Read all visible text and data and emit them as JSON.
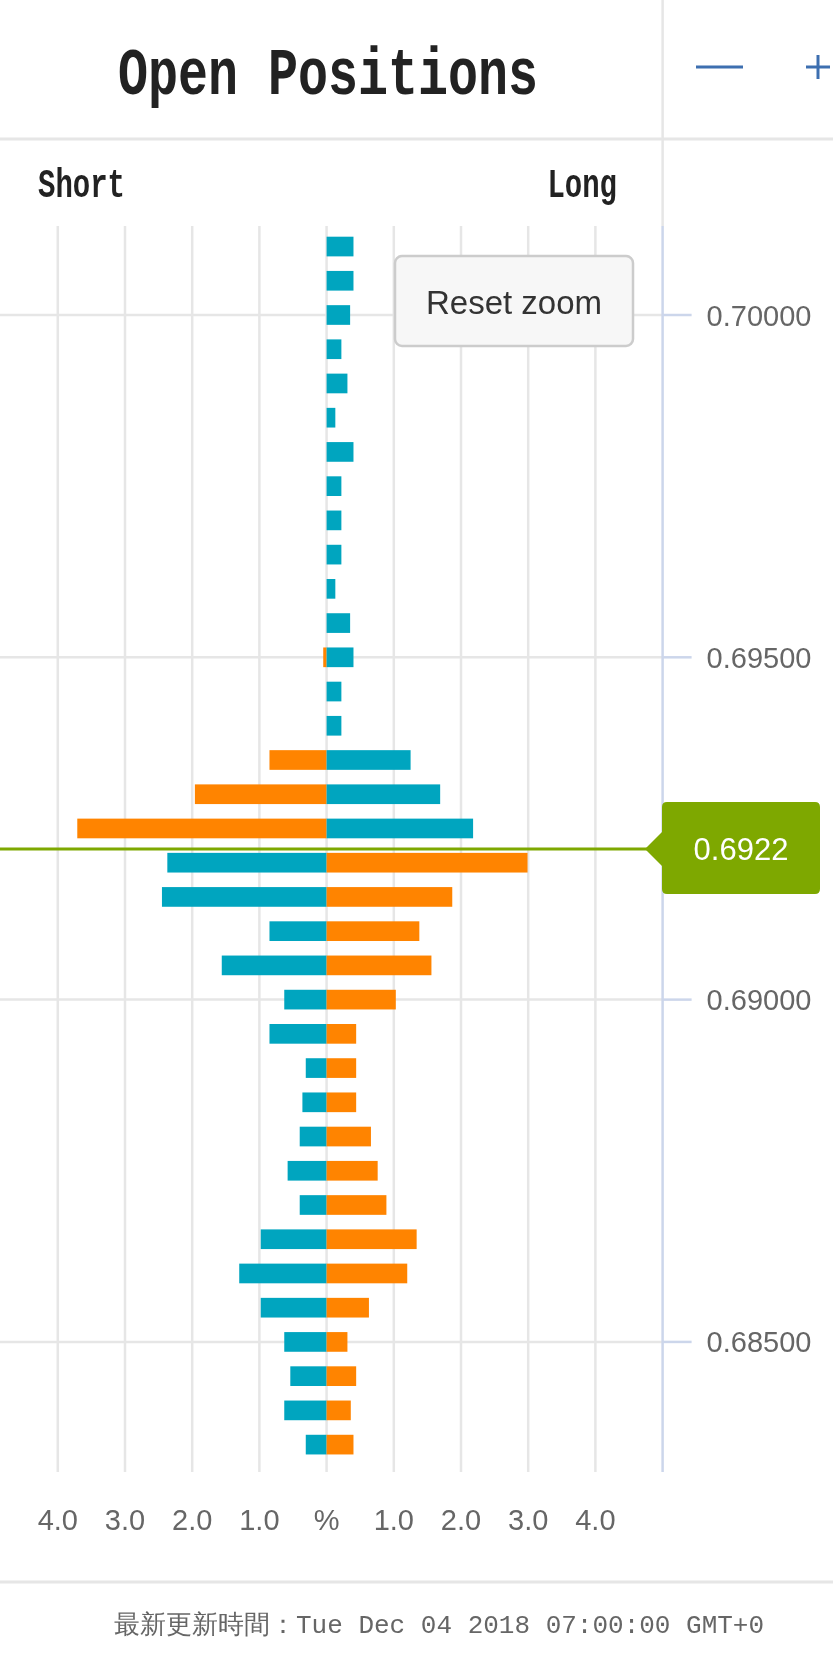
{
  "chart_data": {
    "type": "bar",
    "orientation": "horizontal",
    "stacked": true,
    "title": "Open Positions",
    "x": [
      0.701,
      0.7005,
      0.7,
      0.6995,
      0.699,
      0.6985,
      0.698,
      0.6975,
      0.697,
      0.6965,
      0.696,
      0.6955,
      0.695,
      0.6945,
      0.694,
      0.6935,
      0.693,
      0.6925,
      0.692,
      0.6915,
      0.691,
      0.6905,
      0.69,
      0.6895,
      0.689,
      0.6885,
      0.688,
      0.6875,
      0.687,
      0.6865,
      0.686,
      0.6855,
      0.685,
      0.6845,
      0.684,
      0.6835
    ],
    "series": [
      {
        "colors": [
          null,
          null,
          null,
          null,
          null,
          null,
          null,
          null,
          null,
          null,
          null,
          null,
          "#ff8400",
          null,
          null,
          "#ff8400",
          "#ff8400",
          "#ff8400",
          "#00a5bf",
          "#00a5bf",
          "#00a5bf",
          "#00a5bf",
          "#00a5bf",
          "#00a5bf",
          "#00a5bf",
          "#00a5bf",
          "#00a5bf",
          "#00a5bf",
          "#00a5bf",
          "#00a5bf",
          "#00a5bf",
          "#00a5bf",
          "#00a5bf",
          "#00a5bf",
          "#00a5bf",
          "#00a5bf"
        ],
        "values": [
          null,
          null,
          null,
          null,
          null,
          null,
          null,
          null,
          null,
          null,
          null,
          null,
          -0.05,
          null,
          null,
          -0.85,
          -1.96,
          -3.71,
          -2.37,
          -2.45,
          -0.85,
          -1.56,
          -0.63,
          -0.85,
          -0.31,
          -0.36,
          -0.4,
          -0.58,
          -0.4,
          -0.98,
          -1.3,
          -0.98,
          -0.63,
          -0.54,
          -0.63,
          -0.31
        ]
      },
      {
        "colors": [
          "#00a5bf",
          "#00a5bf",
          "#00a5bf",
          "#00a5bf",
          "#00a5bf",
          "#00a5bf",
          "#00a5bf",
          "#00a5bf",
          "#00a5bf",
          "#00a5bf",
          "#00a5bf",
          "#00a5bf",
          "#00a5bf",
          "#00a5bf",
          "#00a5bf",
          "#00a5bf",
          "#00a5bf",
          "#00a5bf",
          "#ff8400",
          "#ff8400",
          "#ff8400",
          "#ff8400",
          "#ff8400",
          "#ff8400",
          "#ff8400",
          "#ff8400",
          "#ff8400",
          "#ff8400",
          "#ff8400",
          "#ff8400",
          "#ff8400",
          "#ff8400",
          "#ff8400",
          "#ff8400",
          "#ff8400",
          "#ff8400"
        ],
        "values": [
          0.4,
          0.4,
          0.35,
          0.22,
          0.31,
          0.13,
          0.4,
          0.22,
          0.22,
          0.22,
          0.13,
          0.35,
          0.4,
          0.22,
          0.22,
          1.25,
          1.69,
          2.18,
          2.99,
          1.87,
          1.38,
          1.56,
          1.03,
          0.44,
          0.44,
          0.44,
          0.66,
          0.76,
          0.89,
          1.34,
          1.2,
          0.63,
          0.31,
          0.44,
          0.36,
          0.4
        ]
      }
    ],
    "xlim": [
      -4.86,
      5.0
    ],
    "xticks": [
      {
        "value": -4,
        "label": "4.0"
      },
      {
        "value": -3,
        "label": "3.0"
      },
      {
        "value": -2,
        "label": "2.0"
      },
      {
        "value": -1,
        "label": "1.0"
      },
      {
        "value": 0,
        "label": "%"
      },
      {
        "value": 1,
        "label": "1.0"
      },
      {
        "value": 2,
        "label": "2.0"
      },
      {
        "value": 3,
        "label": "3.0"
      },
      {
        "value": 4,
        "label": "4.0"
      }
    ],
    "ylim": [
      0.6831,
      0.7013
    ],
    "yticks": [
      {
        "value": 0.685,
        "label": "0.68500"
      },
      {
        "value": 0.69,
        "label": "0.69000"
      },
      {
        "value": 0.695,
        "label": "0.69500"
      },
      {
        "value": 0.7,
        "label": "0.70000"
      }
    ],
    "grid": true,
    "ref_lines": [
      {
        "axis": "y",
        "value": 0.6922,
        "label": "0.6922",
        "color": "#7ea800"
      }
    ],
    "annotations": [
      "Short",
      "Long",
      "Reset zoom",
      "最新更新時間：Tue Dec 04 2018 07:00:00 GMT+0"
    ]
  }
}
